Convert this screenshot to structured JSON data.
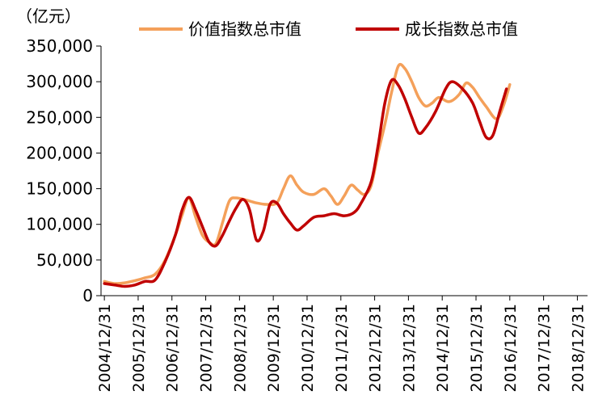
{
  "chart_data": {
    "type": "line",
    "unit_label": "（亿元）",
    "ylim": [
      0,
      350000
    ],
    "y_ticks": [
      "0",
      "50,000",
      "100,000",
      "150,000",
      "200,000",
      "250,000",
      "300,000",
      "350,000"
    ],
    "x_ticks": [
      "2004/12/31",
      "2005/12/31",
      "2006/12/31",
      "2007/12/31",
      "2008/12/31",
      "2009/12/31",
      "2010/12/31",
      "2011/12/31",
      "2012/12/31",
      "2013/12/31",
      "2014/12/31",
      "2015/12/31",
      "2016/12/31",
      "2017/12/31",
      "2018/12/31"
    ],
    "xlim": [
      2004.9,
      2019.3
    ],
    "grid": false,
    "legend_position": "top",
    "series": [
      {
        "name": "价值指数总市值",
        "color": "#F4A05A",
        "points": [
          [
            2005.0,
            20000
          ],
          [
            2005.3,
            17000
          ],
          [
            2005.6,
            18000
          ],
          [
            2005.9,
            21000
          ],
          [
            2006.2,
            25000
          ],
          [
            2006.5,
            30000
          ],
          [
            2006.8,
            50000
          ],
          [
            2007.1,
            85000
          ],
          [
            2007.3,
            113000
          ],
          [
            2007.5,
            137000
          ],
          [
            2007.7,
            110000
          ],
          [
            2007.9,
            85000
          ],
          [
            2008.1,
            75000
          ],
          [
            2008.3,
            73000
          ],
          [
            2008.5,
            103000
          ],
          [
            2008.7,
            133000
          ],
          [
            2008.9,
            137000
          ],
          [
            2009.2,
            134000
          ],
          [
            2009.5,
            130000
          ],
          [
            2009.8,
            128000
          ],
          [
            2010.1,
            130000
          ],
          [
            2010.3,
            150000
          ],
          [
            2010.5,
            168000
          ],
          [
            2010.7,
            155000
          ],
          [
            2010.9,
            145000
          ],
          [
            2011.2,
            142000
          ],
          [
            2011.5,
            150000
          ],
          [
            2011.7,
            140000
          ],
          [
            2011.9,
            128000
          ],
          [
            2012.1,
            140000
          ],
          [
            2012.3,
            155000
          ],
          [
            2012.5,
            148000
          ],
          [
            2012.7,
            142000
          ],
          [
            2012.9,
            155000
          ],
          [
            2013.1,
            200000
          ],
          [
            2013.3,
            240000
          ],
          [
            2013.5,
            285000
          ],
          [
            2013.7,
            322000
          ],
          [
            2013.9,
            318000
          ],
          [
            2014.1,
            300000
          ],
          [
            2014.3,
            278000
          ],
          [
            2014.5,
            266000
          ],
          [
            2014.7,
            270000
          ],
          [
            2014.9,
            278000
          ],
          [
            2015.2,
            272000
          ],
          [
            2015.5,
            282000
          ],
          [
            2015.7,
            298000
          ],
          [
            2015.9,
            292000
          ],
          [
            2016.1,
            278000
          ],
          [
            2016.3,
            265000
          ],
          [
            2016.6,
            248000
          ],
          [
            2016.8,
            265000
          ],
          [
            2017.0,
            296000
          ]
        ]
      },
      {
        "name": "成长指数总市值",
        "color": "#C00000",
        "points": [
          [
            2005.0,
            17000
          ],
          [
            2005.3,
            15000
          ],
          [
            2005.6,
            13000
          ],
          [
            2005.9,
            15000
          ],
          [
            2006.2,
            20000
          ],
          [
            2006.5,
            22000
          ],
          [
            2006.8,
            48000
          ],
          [
            2007.1,
            85000
          ],
          [
            2007.3,
            120000
          ],
          [
            2007.5,
            138000
          ],
          [
            2007.7,
            120000
          ],
          [
            2007.9,
            97000
          ],
          [
            2008.1,
            75000
          ],
          [
            2008.3,
            70000
          ],
          [
            2008.5,
            85000
          ],
          [
            2008.7,
            105000
          ],
          [
            2008.9,
            123000
          ],
          [
            2009.1,
            135000
          ],
          [
            2009.3,
            120000
          ],
          [
            2009.5,
            78000
          ],
          [
            2009.7,
            90000
          ],
          [
            2009.9,
            128000
          ],
          [
            2010.1,
            130000
          ],
          [
            2010.3,
            115000
          ],
          [
            2010.5,
            102000
          ],
          [
            2010.7,
            92000
          ],
          [
            2010.9,
            98000
          ],
          [
            2011.2,
            110000
          ],
          [
            2011.5,
            112000
          ],
          [
            2011.8,
            115000
          ],
          [
            2012.1,
            112000
          ],
          [
            2012.4,
            117000
          ],
          [
            2012.6,
            130000
          ],
          [
            2012.9,
            160000
          ],
          [
            2013.1,
            210000
          ],
          [
            2013.3,
            270000
          ],
          [
            2013.5,
            302000
          ],
          [
            2013.7,
            295000
          ],
          [
            2013.9,
            275000
          ],
          [
            2014.1,
            250000
          ],
          [
            2014.3,
            228000
          ],
          [
            2014.5,
            235000
          ],
          [
            2014.8,
            258000
          ],
          [
            2015.1,
            290000
          ],
          [
            2015.3,
            300000
          ],
          [
            2015.6,
            290000
          ],
          [
            2015.9,
            270000
          ],
          [
            2016.1,
            245000
          ],
          [
            2016.3,
            222000
          ],
          [
            2016.5,
            225000
          ],
          [
            2016.7,
            258000
          ],
          [
            2016.9,
            290000
          ]
        ]
      }
    ]
  }
}
